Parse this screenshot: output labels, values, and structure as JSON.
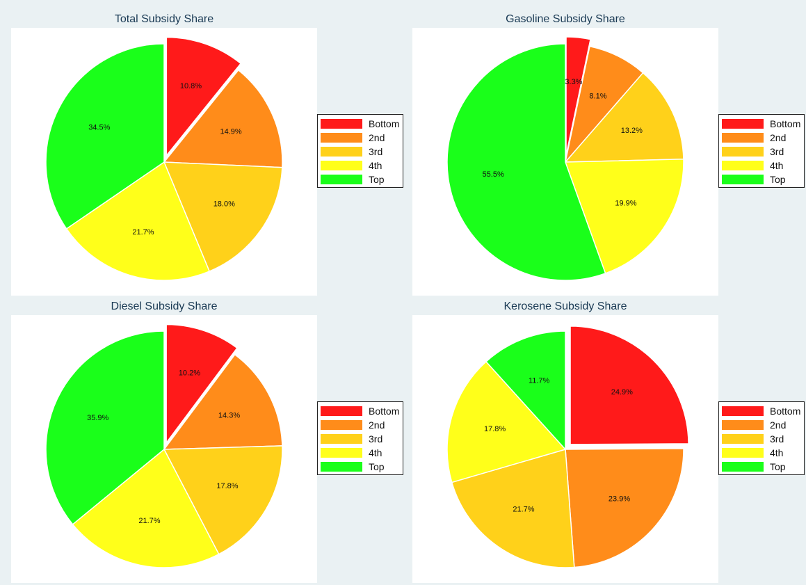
{
  "chart_data": [
    {
      "type": "pie",
      "title": "Total Subsidy Share",
      "exploded": "Bottom",
      "legend_position": "right",
      "slices": [
        {
          "label": "Bottom",
          "value": 10.8,
          "text": "10.8%",
          "color": "#ff1a1a"
        },
        {
          "label": "2nd",
          "value": 14.9,
          "text": "14.9%",
          "color": "#ff8c1a"
        },
        {
          "label": "3rd",
          "value": 18.0,
          "text": "18.0%",
          "color": "#ffd11a"
        },
        {
          "label": "4th",
          "value": 21.7,
          "text": "21.7%",
          "color": "#ffff1a"
        },
        {
          "label": "Top",
          "value": 34.5,
          "text": "34.5%",
          "color": "#1aff1a"
        }
      ]
    },
    {
      "type": "pie",
      "title": "Gasoline Subsidy Share",
      "exploded": "Bottom",
      "legend_position": "right",
      "slices": [
        {
          "label": "Bottom",
          "value": 3.3,
          "text": "3.3%",
          "color": "#ff1a1a"
        },
        {
          "label": "2nd",
          "value": 8.1,
          "text": "8.1%",
          "color": "#ff8c1a"
        },
        {
          "label": "3rd",
          "value": 13.2,
          "text": "13.2%",
          "color": "#ffd11a"
        },
        {
          "label": "4th",
          "value": 19.9,
          "text": "19.9%",
          "color": "#ffff1a"
        },
        {
          "label": "Top",
          "value": 55.5,
          "text": "55.5%",
          "color": "#1aff1a"
        }
      ]
    },
    {
      "type": "pie",
      "title": "Diesel Subsidy Share",
      "exploded": "Bottom",
      "legend_position": "right",
      "slices": [
        {
          "label": "Bottom",
          "value": 10.2,
          "text": "10.2%",
          "color": "#ff1a1a"
        },
        {
          "label": "2nd",
          "value": 14.3,
          "text": "14.3%",
          "color": "#ff8c1a"
        },
        {
          "label": "3rd",
          "value": 17.8,
          "text": "17.8%",
          "color": "#ffd11a"
        },
        {
          "label": "4th",
          "value": 21.7,
          "text": "21.7%",
          "color": "#ffff1a"
        },
        {
          "label": "Top",
          "value": 35.9,
          "text": "35.9%",
          "color": "#1aff1a"
        }
      ]
    },
    {
      "type": "pie",
      "title": "Kerosene Subsidy Share",
      "exploded": "Bottom",
      "legend_position": "right",
      "slices": [
        {
          "label": "Bottom",
          "value": 24.9,
          "text": "24.9%",
          "color": "#ff1a1a"
        },
        {
          "label": "2nd",
          "value": 23.9,
          "text": "23.9%",
          "color": "#ff8c1a"
        },
        {
          "label": "3rd",
          "value": 21.7,
          "text": "21.7%",
          "color": "#ffd11a"
        },
        {
          "label": "4th",
          "value": 17.8,
          "text": "17.8%",
          "color": "#ffff1a"
        },
        {
          "label": "Top",
          "value": 11.7,
          "text": "11.7%",
          "color": "#1aff1a"
        }
      ]
    }
  ]
}
